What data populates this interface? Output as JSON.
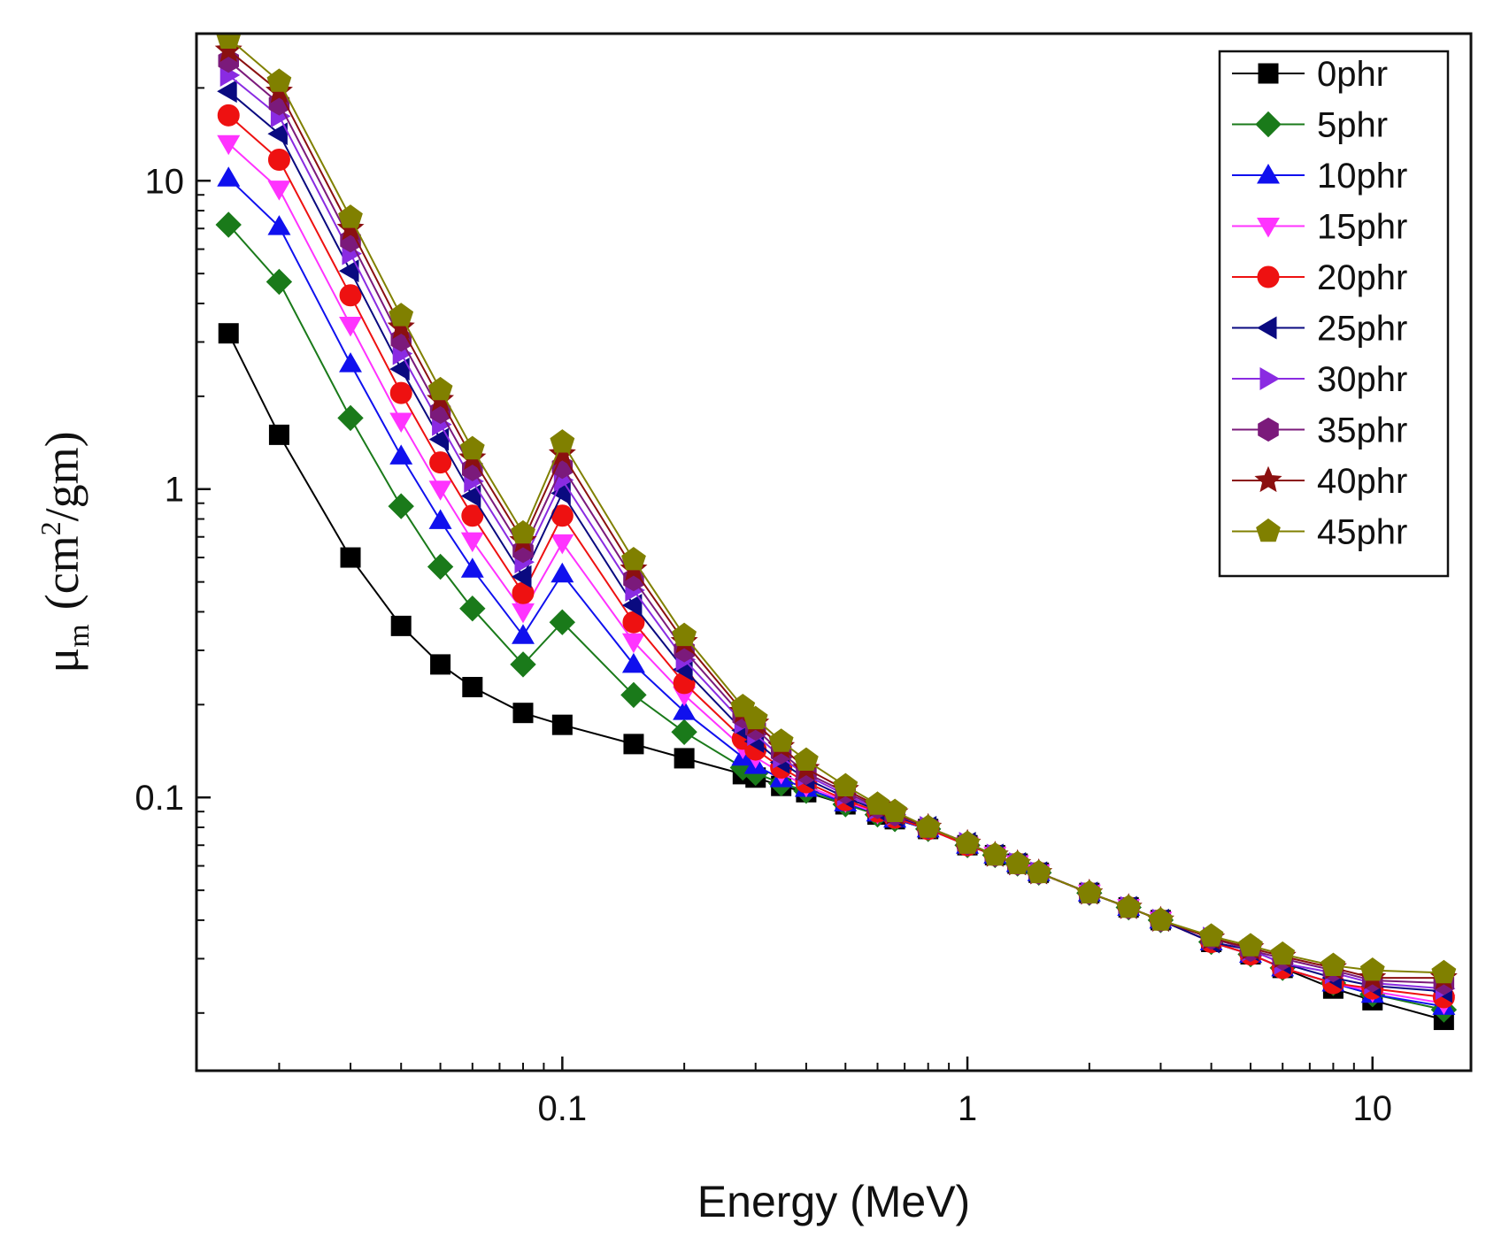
{
  "chart_data": {
    "type": "line",
    "title": "",
    "xlabel": "Energy (MeV)",
    "ylabel": {
      "symbol": "μ",
      "subscript": "m",
      "unit_prefix": "(cm",
      "superscript": "2",
      "unit_suffix": "/gm)"
    },
    "xscale": "log",
    "yscale": "log",
    "xlim": [
      0.0125,
      17.5
    ],
    "ylim": [
      0.013,
      30
    ],
    "x_ticks": [
      {
        "value": 0.1,
        "label": "0.1"
      },
      {
        "value": 1,
        "label": "1"
      },
      {
        "value": 10,
        "label": "10"
      }
    ],
    "y_ticks": [
      {
        "value": 0.1,
        "label": "0.1"
      },
      {
        "value": 1,
        "label": "1"
      },
      {
        "value": 10,
        "label": "10"
      }
    ],
    "legend_position": "top-right",
    "x": [
      0.015,
      0.02,
      0.03,
      0.04,
      0.05,
      0.06,
      0.08,
      0.1,
      0.15,
      0.2,
      0.279,
      0.3,
      0.347,
      0.4,
      0.5,
      0.6,
      0.662,
      0.8,
      1.0,
      1.17,
      1.33,
      1.5,
      2.0,
      2.5,
      3.0,
      4.0,
      5.0,
      6.0,
      8.0,
      10.0,
      15.0
    ],
    "series": [
      {
        "name": "0phr",
        "color": "#000000",
        "marker": "square",
        "values": [
          3.2,
          1.5,
          0.6,
          0.36,
          0.27,
          0.228,
          0.188,
          0.172,
          0.149,
          0.134,
          0.119,
          0.116,
          0.109,
          0.104,
          0.095,
          0.088,
          0.085,
          0.079,
          0.07,
          0.065,
          0.061,
          0.057,
          0.049,
          0.044,
          0.04,
          0.034,
          0.031,
          0.028,
          0.024,
          0.022,
          0.019
        ]
      },
      {
        "name": "5phr",
        "color": "#1a7a1a",
        "marker": "diamond",
        "values": [
          7.2,
          4.7,
          1.7,
          0.88,
          0.56,
          0.41,
          0.27,
          0.37,
          0.215,
          0.163,
          0.125,
          0.12,
          0.111,
          0.105,
          0.095,
          0.088,
          0.085,
          0.079,
          0.07,
          0.065,
          0.061,
          0.057,
          0.049,
          0.044,
          0.04,
          0.034,
          0.031,
          0.028,
          0.025,
          0.023,
          0.0205
        ]
      },
      {
        "name": "10phr",
        "color": "#1010ee",
        "marker": "triangle-up",
        "values": [
          10.2,
          7.1,
          2.55,
          1.28,
          0.79,
          0.55,
          0.335,
          0.53,
          0.27,
          0.19,
          0.135,
          0.127,
          0.115,
          0.107,
          0.096,
          0.089,
          0.085,
          0.079,
          0.07,
          0.065,
          0.061,
          0.057,
          0.049,
          0.044,
          0.04,
          0.034,
          0.031,
          0.028,
          0.025,
          0.023,
          0.021
        ]
      },
      {
        "name": "15phr",
        "color": "#ff33ff",
        "marker": "triangle-down",
        "values": [
          13.2,
          9.4,
          3.4,
          1.66,
          1.0,
          0.68,
          0.4,
          0.67,
          0.32,
          0.215,
          0.145,
          0.135,
          0.12,
          0.109,
          0.097,
          0.089,
          0.086,
          0.079,
          0.07,
          0.065,
          0.061,
          0.057,
          0.049,
          0.044,
          0.04,
          0.034,
          0.031,
          0.028,
          0.025,
          0.0235,
          0.0215
        ]
      },
      {
        "name": "20phr",
        "color": "#ee1111",
        "marker": "circle",
        "values": [
          16.3,
          11.7,
          4.25,
          2.05,
          1.22,
          0.82,
          0.46,
          0.82,
          0.37,
          0.235,
          0.155,
          0.143,
          0.125,
          0.112,
          0.098,
          0.09,
          0.086,
          0.079,
          0.07,
          0.065,
          0.061,
          0.057,
          0.049,
          0.044,
          0.04,
          0.034,
          0.031,
          0.028,
          0.025,
          0.024,
          0.0225
        ]
      },
      {
        "name": "25phr",
        "color": "#0a0a80",
        "marker": "triangle-left",
        "values": [
          19.5,
          14.2,
          5.1,
          2.45,
          1.45,
          0.95,
          0.52,
          0.97,
          0.42,
          0.26,
          0.165,
          0.152,
          0.13,
          0.115,
          0.1,
          0.091,
          0.087,
          0.08,
          0.071,
          0.065,
          0.061,
          0.057,
          0.049,
          0.044,
          0.04,
          0.034,
          0.032,
          0.029,
          0.026,
          0.0245,
          0.0235
        ]
      },
      {
        "name": "30phr",
        "color": "#8a2be2",
        "marker": "triangle-right",
        "values": [
          22.0,
          16.2,
          5.8,
          2.75,
          1.62,
          1.06,
          0.58,
          1.07,
          0.47,
          0.28,
          0.175,
          0.16,
          0.135,
          0.118,
          0.102,
          0.092,
          0.088,
          0.08,
          0.071,
          0.065,
          0.061,
          0.057,
          0.049,
          0.044,
          0.04,
          0.035,
          0.032,
          0.029,
          0.027,
          0.025,
          0.024
        ]
      },
      {
        "name": "35phr",
        "color": "#7b1a7b",
        "marker": "hexagon",
        "values": [
          24.5,
          17.8,
          6.4,
          3.05,
          1.78,
          1.16,
          0.63,
          1.18,
          0.51,
          0.3,
          0.183,
          0.167,
          0.14,
          0.12,
          0.104,
          0.093,
          0.088,
          0.08,
          0.071,
          0.065,
          0.061,
          0.057,
          0.049,
          0.044,
          0.04,
          0.035,
          0.032,
          0.03,
          0.0275,
          0.0255,
          0.025
        ]
      },
      {
        "name": "40phr",
        "color": "#8b1010",
        "marker": "star",
        "values": [
          26.5,
          19.5,
          7.0,
          3.35,
          1.95,
          1.26,
          0.68,
          1.3,
          0.55,
          0.32,
          0.19,
          0.174,
          0.146,
          0.124,
          0.106,
          0.094,
          0.089,
          0.08,
          0.071,
          0.065,
          0.061,
          0.057,
          0.049,
          0.044,
          0.04,
          0.035,
          0.0325,
          0.0305,
          0.028,
          0.026,
          0.026
        ]
      },
      {
        "name": "45phr",
        "color": "#808000",
        "marker": "pentagon",
        "values": [
          29.0,
          21.0,
          7.6,
          3.65,
          2.1,
          1.35,
          0.72,
          1.42,
          0.59,
          0.335,
          0.197,
          0.18,
          0.152,
          0.132,
          0.109,
          0.095,
          0.09,
          0.08,
          0.071,
          0.065,
          0.061,
          0.057,
          0.049,
          0.044,
          0.04,
          0.0355,
          0.033,
          0.031,
          0.0285,
          0.0275,
          0.027
        ]
      }
    ]
  }
}
